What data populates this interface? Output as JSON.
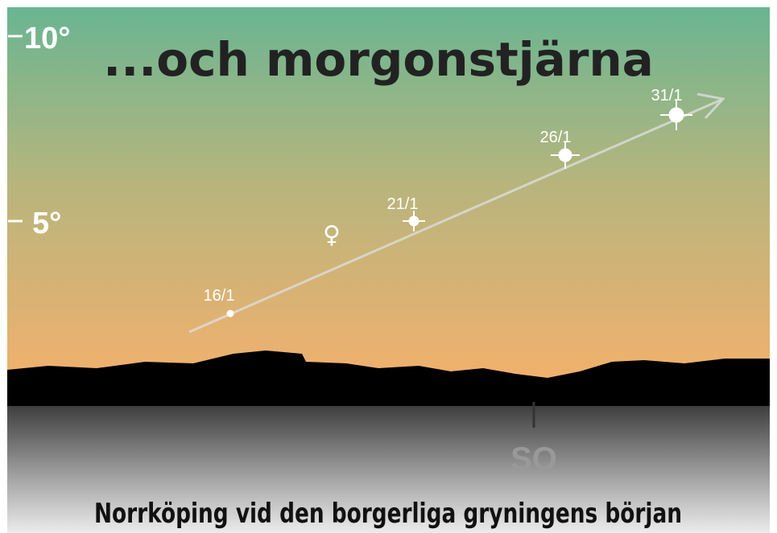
{
  "title": "...och morgonstjärna",
  "altitude_labels": [
    "10°",
    "5°"
  ],
  "dates": [
    "16/1",
    "21/1",
    "26/1",
    "31/1"
  ],
  "planet_symbol": "♀",
  "direction": "SO",
  "caption": "Norrköping vid den borgerliga gryningens början"
}
